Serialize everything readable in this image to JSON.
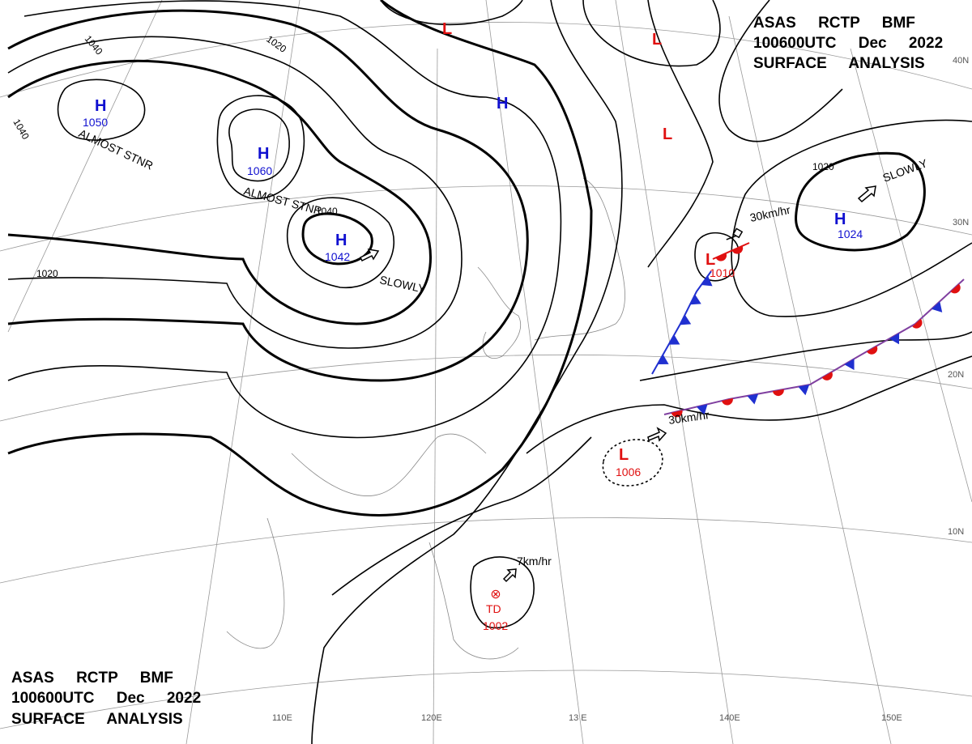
{
  "header": {
    "lines": [
      "ASAS RCTP BMF",
      "100600UTC Dec 2022",
      "SURFACE ANALYSIS"
    ]
  },
  "systems": [
    {
      "type": "H",
      "value": "1050"
    },
    {
      "type": "H",
      "value": "1060"
    },
    {
      "type": "H",
      "value": "1042"
    },
    {
      "type": "H"
    },
    {
      "type": "H",
      "value": "1024"
    },
    {
      "type": "L"
    },
    {
      "type": "L"
    },
    {
      "type": "L"
    },
    {
      "type": "L",
      "value": "1010"
    },
    {
      "type": "L",
      "value": "1006"
    },
    {
      "type": "TD",
      "value": "1002"
    }
  ],
  "isobar_labels": [
    "1040",
    "1020",
    "1040",
    "1020",
    "1040",
    "1020"
  ],
  "movements": [
    "ALMOST STNR",
    "ALMOST STNR",
    "SLOWLY",
    "SLOWLY",
    "30km/hr",
    "30km/hr",
    "7km/hr"
  ],
  "latitudes": [
    "40N",
    "30N",
    "20N",
    "10N"
  ],
  "longitudes": [
    "110E",
    "120E",
    "13 E",
    "140E",
    "150E"
  ]
}
